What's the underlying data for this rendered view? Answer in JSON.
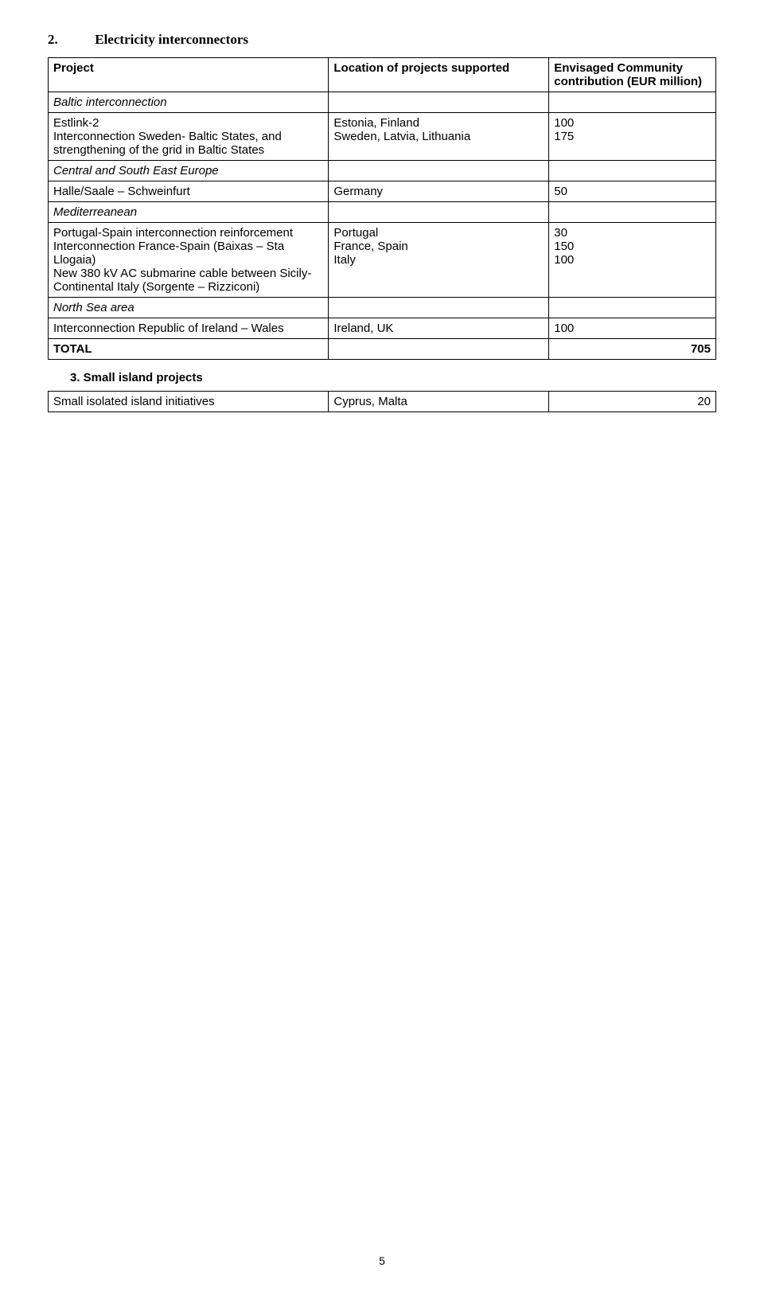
{
  "section": {
    "number": "2.",
    "title": "Electricity interconnectors"
  },
  "headers": {
    "c1": "Project",
    "c2": "Location of projects supported",
    "c3": "Envisaged Community contribution (EUR million)"
  },
  "rows": {
    "baltic_header": "Baltic interconnection",
    "estlink": "Estlink-2",
    "sweden_baltic": "Interconnection Sweden- Baltic States, and strengthening of the grid in Baltic States",
    "estonia": "Estonia, Finland",
    "sweden_loc": "Sweden, Latvia, Lithuania",
    "v100": "100",
    "v175": "175",
    "central_south": "Central and South East Europe",
    "halle": "Halle/Saale – Schweinfurt",
    "germany": "Germany",
    "v50": "50",
    "med": "Mediterreanean",
    "portugal_spain": "Portugal-Spain interconnection reinforcement",
    "france_spain": "Interconnection France-Spain (Baixas – Sta Llogaia)",
    "sicily": "New 380 kV AC submarine cable between Sicily- Continental Italy (Sorgente – Rizziconi)",
    "portugal": "Portugal",
    "france_spain_loc": "France, Spain",
    "italy": "Italy",
    "v30": "30",
    "v150": "150",
    "v100b": "100",
    "north_sea": "North Sea area",
    "ireland_wales": "Interconnection Republic of Ireland – Wales",
    "ireland_uk": "Ireland, UK",
    "v100c": "100",
    "total": "TOTAL",
    "v705": "705"
  },
  "section3": {
    "title": "3. Small island projects",
    "row1_label": "Small isolated island initiatives",
    "row1_loc": "Cyprus, Malta",
    "row1_val": "20"
  },
  "pagenum": "5"
}
